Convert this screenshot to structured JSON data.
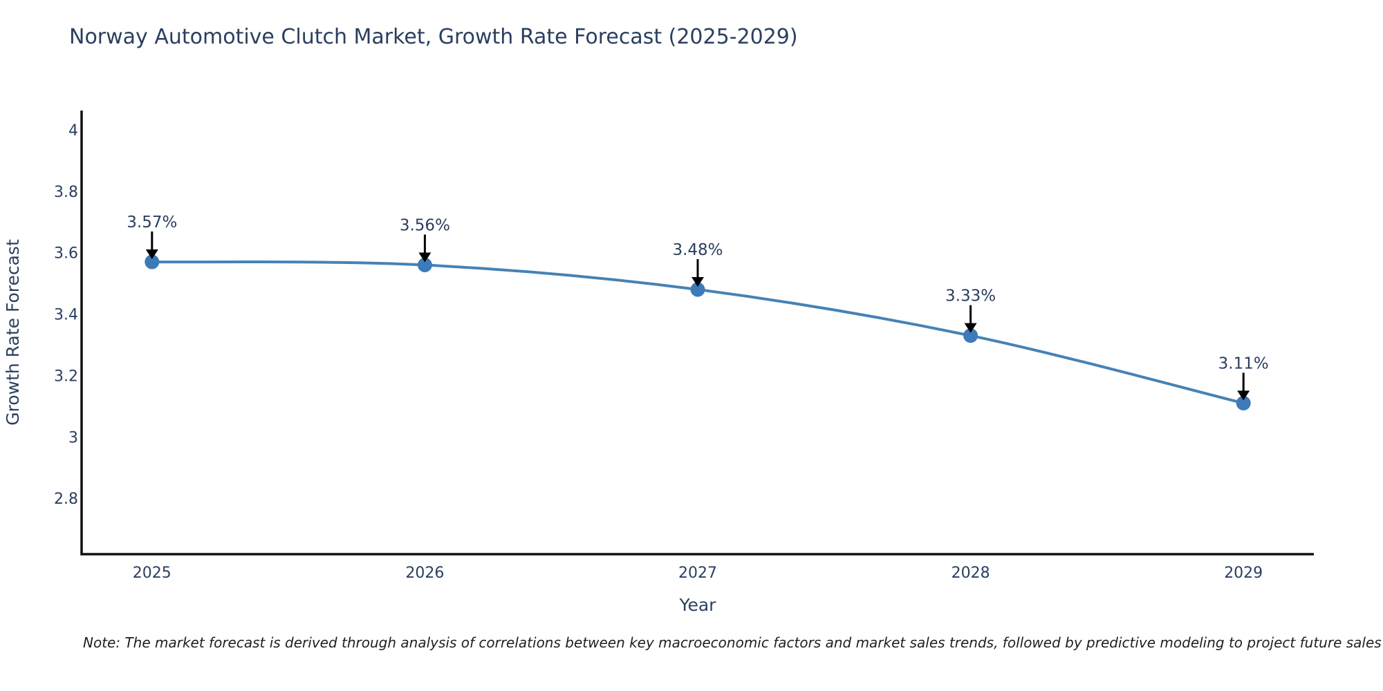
{
  "page": {
    "note": "Note: The market forecast is derived through analysis of correlations between key macroeconomic factors and market sales trends, followed by predictive modeling to project future sales"
  },
  "chart_data": {
    "type": "line",
    "title": "Norway Automotive Clutch Market, Growth Rate Forecast (2025-2029)",
    "xlabel": "Year",
    "ylabel": "Growth Rate Forecast",
    "categories": [
      2025,
      2026,
      2027,
      2028,
      2029
    ],
    "values": [
      3.57,
      3.56,
      3.48,
      3.33,
      3.11
    ],
    "point_labels": [
      "3.57%",
      "3.56%",
      "3.48%",
      "3.33%",
      "3.11%"
    ],
    "xtick_labels": [
      "2025",
      "2026",
      "2027",
      "2028",
      "2029"
    ],
    "ytick_values": [
      2.8,
      3,
      3.2,
      3.4,
      3.6,
      3.8,
      4
    ],
    "ytick_labels": [
      "2.8",
      "3",
      "3.2",
      "3.4",
      "3.6",
      "3.8",
      "4"
    ],
    "xlim": [
      2024.742,
      2029.258
    ],
    "ylim": [
      2.618,
      4.063
    ],
    "grid": false,
    "legend": "none",
    "line_shape": "spline",
    "colors": {
      "line": "#4682b4",
      "marker": "#3d7ab8",
      "axis_line": "#111111",
      "text": "#2a3f5f",
      "annotation_arrow": "#000000"
    }
  }
}
